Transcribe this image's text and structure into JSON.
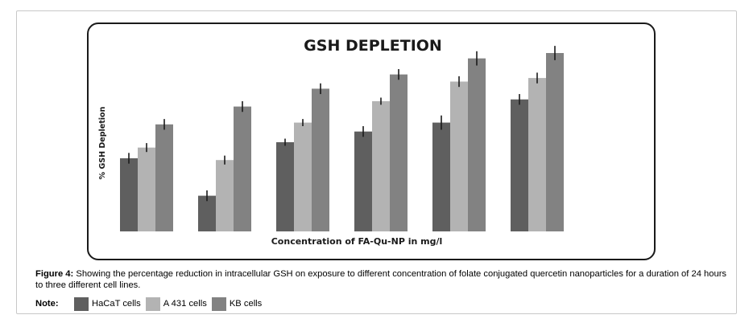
{
  "caption": {
    "label": "Figure 4:",
    "text": " Showing the percentage reduction in intracellular GSH on exposure to different concentration of folate conjugated quercetin nanoparticles for a duration of 24 hours to three different cell lines."
  },
  "note": {
    "label": "Note:"
  },
  "chart_data": {
    "type": "bar",
    "title": "GSH DEPLETION",
    "xlabel": "Concentration of FA-Qu-NP in mg/l",
    "ylabel": "% GSH Depletion",
    "ylim": [
      0,
      100
    ],
    "categories": [
      "",
      "",
      "",
      "",
      "",
      ""
    ],
    "series": [
      {
        "name": "HaCaT cells",
        "color": "#5f5f5f",
        "values": [
          41,
          20,
          50,
          56,
          61,
          74
        ],
        "errors": [
          3,
          3,
          2,
          3,
          4,
          3
        ]
      },
      {
        "name": "A 431 cells",
        "color": "#b3b3b3",
        "values": [
          47,
          40,
          61,
          73,
          84,
          86
        ],
        "errors": [
          2.5,
          2.5,
          2,
          2,
          3,
          3
        ]
      },
      {
        "name": "KB cells",
        "color": "#828282",
        "values": [
          60,
          70,
          80,
          88,
          97,
          100
        ],
        "errors": [
          3,
          3,
          3,
          3,
          4,
          4
        ]
      }
    ],
    "legend": "below chart",
    "grid": false,
    "error_bars": true
  }
}
